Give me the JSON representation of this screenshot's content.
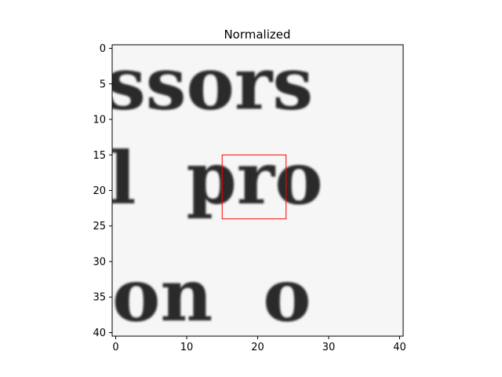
{
  "chart_data": {
    "type": "heatmap",
    "title": "Normalized",
    "xlabel": "",
    "ylabel": "",
    "colormap": "gray",
    "image_size": [
      41,
      41
    ],
    "xlim": [
      -0.5,
      40.5
    ],
    "ylim": [
      40.5,
      -0.5
    ],
    "x_ticks": [
      0,
      10,
      20,
      30,
      40
    ],
    "y_ticks": [
      0,
      5,
      10,
      15,
      20,
      25,
      30,
      35,
      40
    ],
    "text_rows": [
      {
        "text": "ssors",
        "x_start": -1.5,
        "baseline": 8.5
      },
      {
        "text": "l  pro",
        "x_start": -1.0,
        "baseline": 21.8
      },
      {
        "text": "on  o",
        "x_start": -0.5,
        "baseline": 38.3
      }
    ],
    "highlight_box": {
      "x": [
        15,
        24
      ],
      "y": [
        15,
        24
      ],
      "color": "#ff0000"
    }
  }
}
